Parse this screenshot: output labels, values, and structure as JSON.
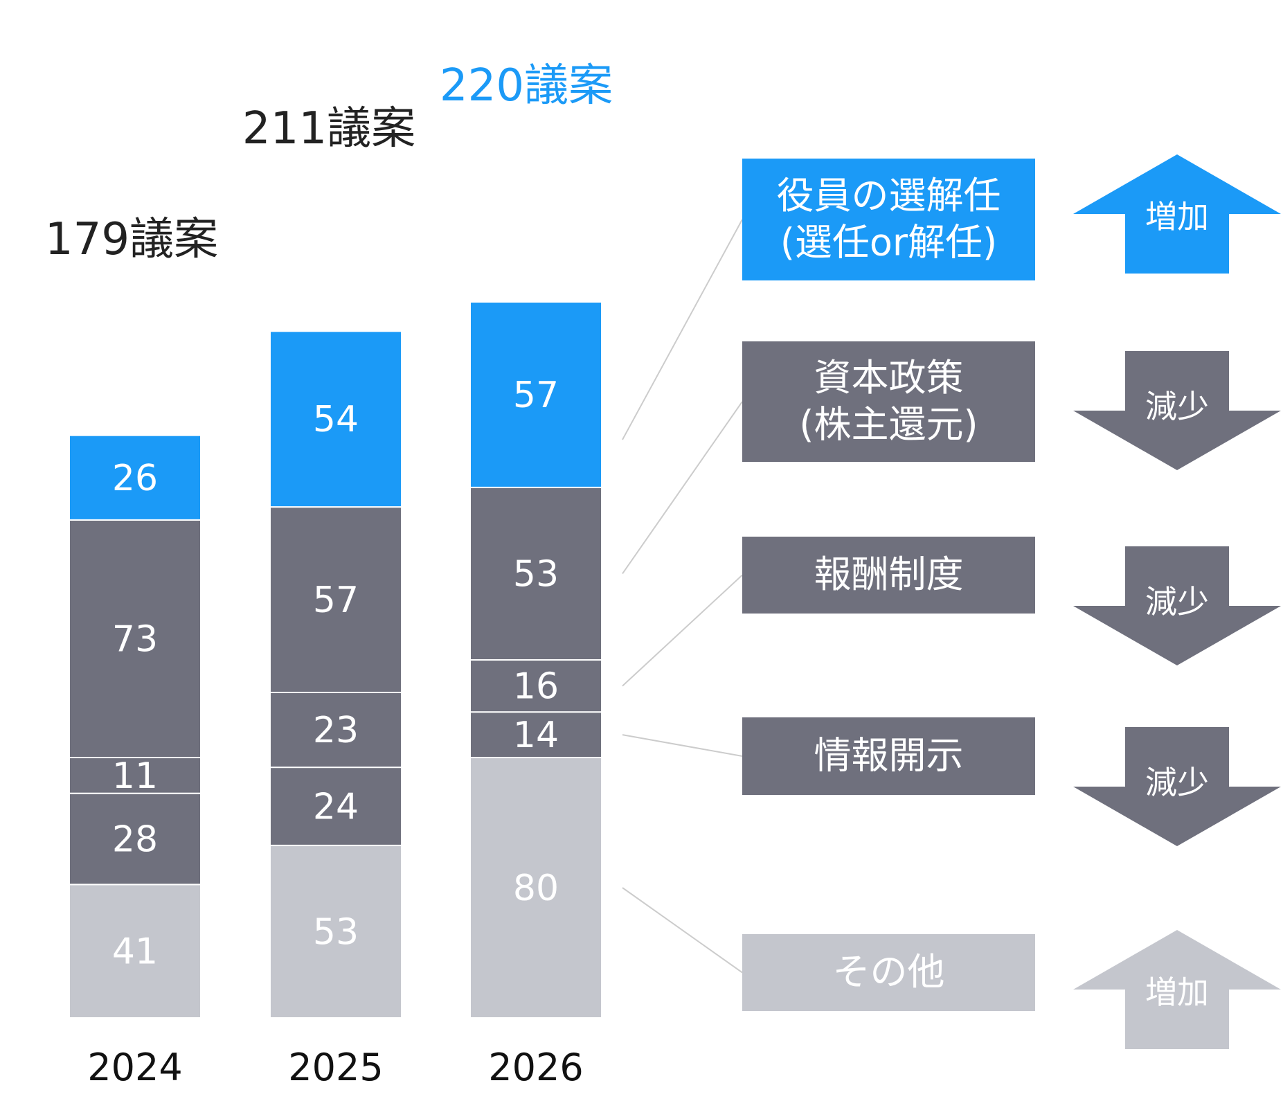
{
  "chart_data": {
    "type": "bar",
    "stacked": true,
    "categories": [
      "2024",
      "2025",
      "2026"
    ],
    "totals": [
      "179議案",
      "211議案",
      "220議案"
    ],
    "series": [
      {
        "name": "その他",
        "values": [
          41,
          53,
          80
        ],
        "color": "#C4C6CD",
        "trend": "増加"
      },
      {
        "name": "情報開示",
        "values": [
          28,
          24,
          14
        ],
        "color": "#6F707D",
        "trend": "減少"
      },
      {
        "name": "報酬制度",
        "values": [
          11,
          23,
          16
        ],
        "color": "#6F707D",
        "trend": "減少"
      },
      {
        "name": "資本政策\n(株主還元)",
        "values": [
          73,
          57,
          53
        ],
        "color": "#6F707D",
        "trend": "減少"
      },
      {
        "name": "役員の選解任\n(選任or解任)",
        "values": [
          26,
          54,
          57
        ],
        "color": "#1B9AF7",
        "trend": "増加"
      }
    ],
    "colors": {
      "highlight": "#1B9AF7",
      "dark": "#6F707D",
      "light": "#C4C6CD",
      "total_text": "#222222",
      "connector": "#CCCCCC"
    },
    "grid": false,
    "legend": "right"
  }
}
